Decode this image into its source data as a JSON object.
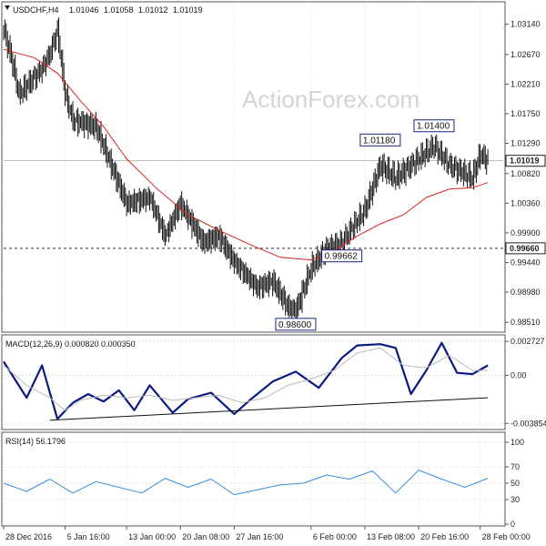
{
  "chart_data": [
    {
      "type": "candlestick",
      "header": {
        "symbol": "USDCHF,H4",
        "values": [
          "1.01046",
          "1.01058",
          "1.01012",
          "1.01019"
        ]
      },
      "watermark": "ActionForex.com",
      "ylim": [
        0.984,
        1.0346
      ],
      "y_ticks": [
        "1.03140",
        "1.02670",
        "1.02210",
        "1.01750",
        "1.01290",
        "1.00820",
        "1.00360",
        "0.99900",
        "0.99440",
        "0.98980",
        "0.98510"
      ],
      "y_tick_values": [
        1.0314,
        1.0267,
        1.0221,
        1.0175,
        1.0129,
        1.0082,
        1.0036,
        0.999,
        0.9944,
        0.9898,
        0.9851
      ],
      "current_price": {
        "value": 1.01019,
        "label": "1.01019"
      },
      "support_line": {
        "value": 0.9966,
        "label": "0.99660"
      },
      "annotations": [
        {
          "label": "0.98600",
          "x": "4 Feb 2017",
          "y": 0.986
        },
        {
          "label": "0.99662",
          "x": "10 Feb 2017",
          "y": 0.99662
        },
        {
          "label": "1.01180",
          "x": "15 Feb 2017",
          "y": 1.0118
        },
        {
          "label": "1.01400",
          "x": "22 Feb 2017",
          "y": 1.014
        }
      ],
      "series": [
        {
          "name": "",
          "kind": "close-path",
          "x": [
            "28 Dec 2016",
            "29 Dec 2016",
            "30 Dec 2016",
            "2 Jan 2017",
            "3 Jan 2017",
            "4 Jan 2017",
            "5 Jan 2017",
            "6 Jan 2017",
            "9 Jan 2017",
            "11 Jan 2017",
            "13 Jan 2017",
            "16 Jan 2017",
            "18 Jan 2017",
            "20 Jan 2017",
            "23 Jan 2017",
            "25 Jan 2017",
            "27 Jan 2017",
            "30 Jan 2017",
            "1 Feb 2017",
            "3 Feb 2017",
            "4 Feb 2017",
            "6 Feb 2017",
            "8 Feb 2017",
            "10 Feb 2017",
            "13 Feb 2017",
            "15 Feb 2017",
            "17 Feb 2017",
            "20 Feb 2017",
            "22 Feb 2017",
            "24 Feb 2017",
            "27 Feb 2017",
            "28 Feb 2017",
            "1 Mar 2017"
          ],
          "values": [
            1.0305,
            1.0262,
            1.0205,
            1.0245,
            1.0268,
            1.0305,
            1.0205,
            1.0165,
            1.0155,
            1.0095,
            1.0035,
            1.0045,
            0.9985,
            1.0035,
            0.9975,
            0.9985,
            0.9945,
            0.9905,
            0.9915,
            0.9875,
            0.9868,
            0.9935,
            0.9965,
            0.9975,
            1.0025,
            1.0095,
            1.0075,
            1.0105,
            1.0125,
            1.0095,
            1.0075,
            1.0112,
            1.0102
          ]
        },
        {
          "name": "",
          "kind": "moving-average",
          "color": "#dd2222",
          "x": [
            "28 Dec 2016",
            "1 Jan 2017",
            "4 Jan 2017",
            "7 Jan 2017",
            "10 Jan 2017",
            "13 Jan 2017",
            "17 Jan 2017",
            "21 Jan 2017",
            "25 Jan 2017",
            "29 Jan 2017",
            "2 Feb 2017",
            "6 Feb 2017",
            "9 Feb 2017",
            "12 Feb 2017",
            "15 Feb 2017",
            "18 Feb 2017",
            "21 Feb 2017",
            "24 Feb 2017",
            "27 Feb 2017",
            "1 Mar 2017"
          ],
          "values": [
            1.0275,
            1.0262,
            1.0238,
            1.0195,
            1.0155,
            1.0105,
            1.0058,
            1.0018,
            0.9994,
            0.9972,
            0.9952,
            0.9948,
            0.9962,
            0.9985,
            1.0004,
            1.0018,
            1.0045,
            1.0058,
            1.006,
            1.0068
          ]
        }
      ]
    },
    {
      "type": "line",
      "title": "MACD(12,26,9) 0.000820 0.000350",
      "ylim": [
        -0.0042,
        0.0031
      ],
      "y_ticks": [
        "0.002727",
        "0.00",
        "-0.003854"
      ],
      "y_tick_values": [
        0.002727,
        0.0,
        -0.003854
      ],
      "series": [
        {
          "name": "",
          "color": "#0a1a80",
          "role": "macd",
          "x": [
            "28 Dec 2016",
            "31 Dec 2016",
            "2 Jan 2017",
            "4 Jan 2017",
            "6 Jan 2017",
            "8 Jan 2017",
            "10 Jan 2017",
            "12 Jan 2017",
            "14 Jan 2017",
            "16 Jan 2017",
            "19 Jan 2017",
            "21 Jan 2017",
            "24 Jan 2017",
            "27 Jan 2017",
            "29 Jan 2017",
            "1 Feb 2017",
            "4 Feb 2017",
            "7 Feb 2017",
            "10 Feb 2017",
            "12 Feb 2017",
            "15 Feb 2017",
            "17 Feb 2017",
            "19 Feb 2017",
            "21 Feb 2017",
            "23 Feb 2017",
            "25 Feb 2017",
            "27 Feb 2017",
            "1 Mar 2017"
          ],
          "values": [
            0.0011,
            -0.0018,
            0.0008,
            -0.0035,
            -0.0022,
            -0.0015,
            -0.0021,
            -0.0012,
            -0.0028,
            -0.0008,
            -0.003,
            -0.0019,
            -0.0014,
            -0.0031,
            -0.002,
            -0.0005,
            0.0003,
            -0.001,
            0.0014,
            0.0024,
            0.0025,
            0.0022,
            -0.0015,
            0.0004,
            0.0026,
            0.0002,
            0.0001,
            0.0008
          ]
        },
        {
          "name": "",
          "color": "#bbbbbb",
          "role": "signal",
          "x": [
            "28 Dec 2016",
            "31 Dec 2016",
            "3 Jan 2017",
            "5 Jan 2017",
            "7 Jan 2017",
            "10 Jan 2017",
            "13 Jan 2017",
            "16 Jan 2017",
            "19 Jan 2017",
            "22 Jan 2017",
            "25 Jan 2017",
            "28 Jan 2017",
            "31 Jan 2017",
            "3 Feb 2017",
            "6 Feb 2017",
            "9 Feb 2017",
            "12 Feb 2017",
            "15 Feb 2017",
            "18 Feb 2017",
            "21 Feb 2017",
            "24 Feb 2017",
            "27 Feb 2017",
            "1 Mar 2017"
          ],
          "values": [
            0.0008,
            -0.0008,
            -0.0018,
            -0.0028,
            -0.002,
            -0.0016,
            -0.0018,
            -0.0016,
            -0.002,
            -0.0018,
            -0.0016,
            -0.0022,
            -0.0018,
            -0.0008,
            -0.0003,
            0.0004,
            0.0018,
            0.0022,
            0.0008,
            0.0006,
            0.0016,
            0.0004,
            0.0004
          ]
        },
        {
          "name": "",
          "color": "#111111",
          "role": "trendline",
          "x": [
            "3 Jan 2017",
            "1 Mar 2017"
          ],
          "values": [
            -0.0036,
            -0.0018
          ]
        }
      ]
    },
    {
      "type": "line",
      "title": "RSI(14) 56.1796",
      "ylim": [
        0,
        110
      ],
      "y_ticks": [
        "100",
        "70",
        "50",
        "30",
        "0"
      ],
      "y_tick_values": [
        100,
        70,
        50,
        30,
        0
      ],
      "series": [
        {
          "name": "",
          "color": "#3a8de0",
          "x": [
            "28 Dec 2016",
            "31 Dec 2016",
            "3 Jan 2017",
            "6 Jan 2017",
            "9 Jan 2017",
            "12 Jan 2017",
            "15 Jan 2017",
            "18 Jan 2017",
            "21 Jan 2017",
            "24 Jan 2017",
            "27 Jan 2017",
            "30 Jan 2017",
            "2 Feb 2017",
            "5 Feb 2017",
            "8 Feb 2017",
            "11 Feb 2017",
            "14 Feb 2017",
            "17 Feb 2017",
            "20 Feb 2017",
            "23 Feb 2017",
            "26 Feb 2017",
            "1 Mar 2017"
          ],
          "values": [
            50,
            40,
            55,
            38,
            52,
            45,
            38,
            56,
            45,
            55,
            36,
            42,
            48,
            50,
            60,
            55,
            65,
            38,
            66,
            55,
            45,
            56
          ]
        }
      ]
    }
  ],
  "x_axis": {
    "ticks": [
      "28 Dec 2016",
      "5 Jan 16:00",
      "13 Jan 00:00",
      "20 Jan 08:00",
      "27 Jan 16:00",
      "6 Feb 00:00",
      "13 Feb 08:00",
      "20 Feb 16:00",
      "28 Feb 00:00"
    ],
    "tick_values": [
      "28 Dec 2016",
      "5 Jan 2017",
      "13 Jan 2017",
      "20 Jan 2017",
      "27 Jan 2017",
      "6 Feb 2017",
      "13 Feb 2017",
      "20 Feb 2017",
      "28 Feb 2017"
    ],
    "range": [
      "28 Dec 2016",
      "3 Mar 2017"
    ]
  },
  "colors": {
    "candles": "#111111",
    "moving_average": "#dd2222",
    "macd": "#0a1a80",
    "signal": "#bbbbbb",
    "rsi": "#3a8de0",
    "grid": "#cccccc",
    "frame": "#555555"
  },
  "grid": true
}
